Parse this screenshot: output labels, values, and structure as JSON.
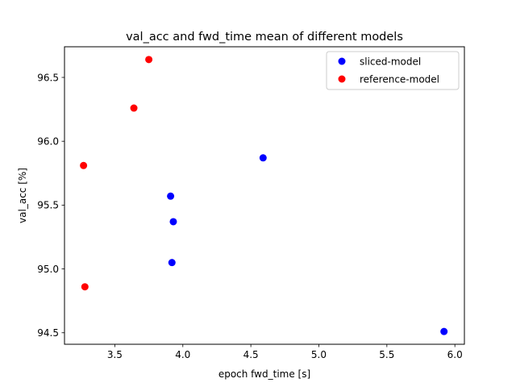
{
  "chart_data": {
    "type": "scatter",
    "title": "val_acc and fwd_time mean of different models",
    "xlabel": "epoch fwd_time [s]",
    "ylabel": "val_acc [%]",
    "xlim": [
      3.13,
      6.07
    ],
    "ylim": [
      94.41,
      96.74
    ],
    "xticks": [
      "3.5",
      "4.0",
      "4.5",
      "5.0",
      "5.5",
      "6.0"
    ],
    "yticks": [
      "94.5",
      "95.0",
      "95.5",
      "96.0",
      "96.5"
    ],
    "grid": false,
    "legend": "upper right",
    "series": [
      {
        "name": "sliced-model",
        "color": "#0000ff",
        "points": [
          {
            "x": 4.59,
            "y": 95.87
          },
          {
            "x": 3.91,
            "y": 95.57
          },
          {
            "x": 3.93,
            "y": 95.37
          },
          {
            "x": 3.92,
            "y": 95.05
          },
          {
            "x": 5.92,
            "y": 94.51
          }
        ]
      },
      {
        "name": "reference-model",
        "color": "#ff0000",
        "points": [
          {
            "x": 3.75,
            "y": 96.64
          },
          {
            "x": 3.64,
            "y": 96.26
          },
          {
            "x": 3.27,
            "y": 95.81
          },
          {
            "x": 3.28,
            "y": 94.86
          }
        ]
      }
    ]
  }
}
